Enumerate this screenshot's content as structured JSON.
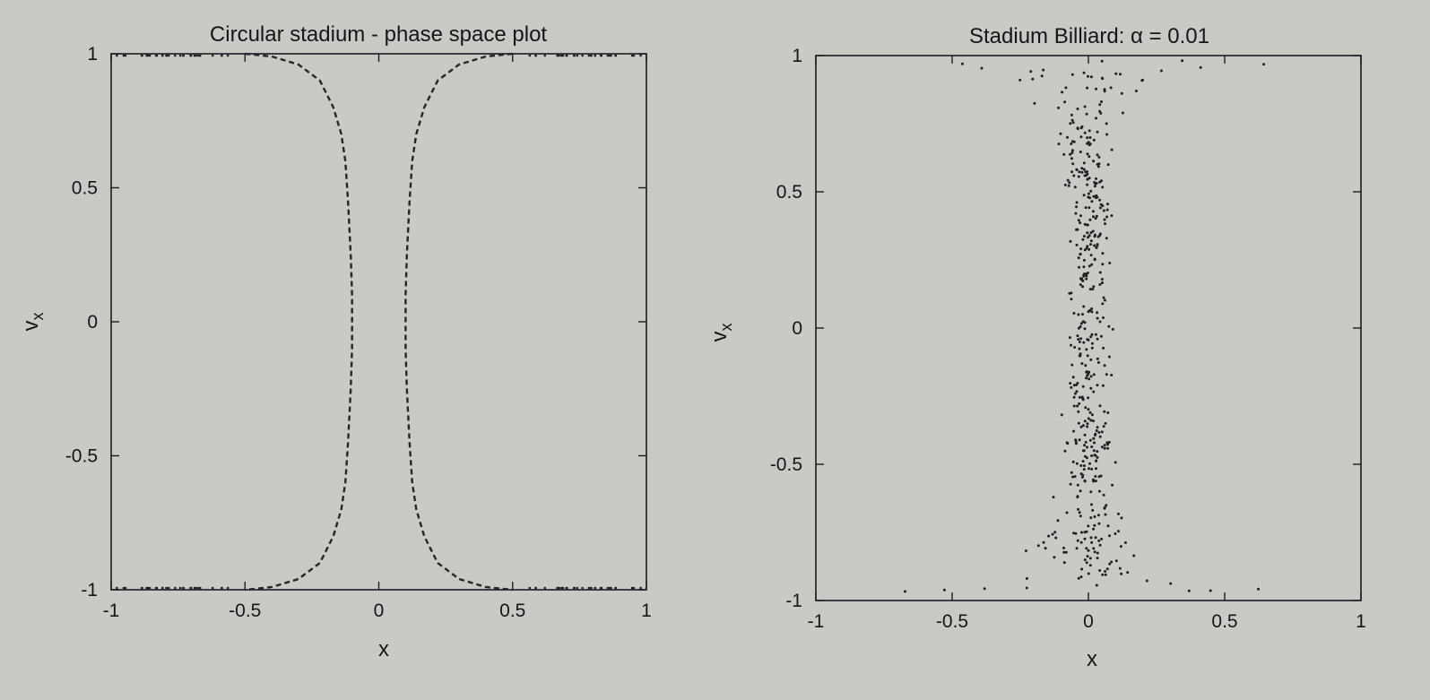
{
  "chart_data": [
    {
      "type": "line",
      "title": "Circular stadium - phase space plot",
      "xlabel": "x",
      "ylabel_main": "v",
      "ylabel_sub": "x",
      "xlim": [
        -1,
        1
      ],
      "ylim": [
        -1,
        1
      ],
      "xticks": [
        "-1",
        "-0.5",
        "0",
        "0.5",
        "1"
      ],
      "yticks": [
        "1",
        "0.5",
        "0",
        "-0.5",
        "-1"
      ],
      "grid": false,
      "series": [
        {
          "style": "dashed",
          "x": [
            -0.5,
            -0.4,
            -0.3,
            -0.22,
            -0.17,
            -0.14,
            -0.125,
            -0.115,
            -0.105,
            -0.1,
            -0.1,
            -0.1,
            -0.105,
            -0.115,
            -0.125,
            -0.14,
            -0.17,
            -0.22,
            -0.3,
            -0.4,
            -0.5
          ],
          "y": [
            1.0,
            0.99,
            0.96,
            0.9,
            0.8,
            0.7,
            0.6,
            0.45,
            0.25,
            0.1,
            0.0,
            -0.1,
            -0.25,
            -0.45,
            -0.6,
            -0.7,
            -0.8,
            -0.9,
            -0.96,
            -0.99,
            -1.0
          ]
        },
        {
          "style": "dashed",
          "x": [
            0.5,
            0.4,
            0.3,
            0.22,
            0.17,
            0.14,
            0.125,
            0.115,
            0.105,
            0.1,
            0.1,
            0.1,
            0.105,
            0.115,
            0.125,
            0.14,
            0.17,
            0.22,
            0.3,
            0.4,
            0.5
          ],
          "y": [
            1.0,
            0.99,
            0.96,
            0.9,
            0.8,
            0.7,
            0.6,
            0.45,
            0.25,
            0.1,
            0.0,
            -0.1,
            -0.25,
            -0.45,
            -0.6,
            -0.7,
            -0.8,
            -0.9,
            -0.96,
            -0.99,
            -1.0
          ]
        }
      ]
    },
    {
      "type": "scatter",
      "title": "Stadium Billiard: α = 0.01",
      "xlabel": "x",
      "ylabel_main": "v",
      "ylabel_sub": "x",
      "xlim": [
        -1,
        1
      ],
      "ylim": [
        -1,
        1
      ],
      "xticks": [
        "-1",
        "-0.5",
        "0",
        "0.5",
        "1"
      ],
      "yticks": [
        "1",
        "0.5",
        "0",
        "-0.5",
        "-1"
      ],
      "grid": false,
      "marker": "dot",
      "point_count": 500
    }
  ]
}
